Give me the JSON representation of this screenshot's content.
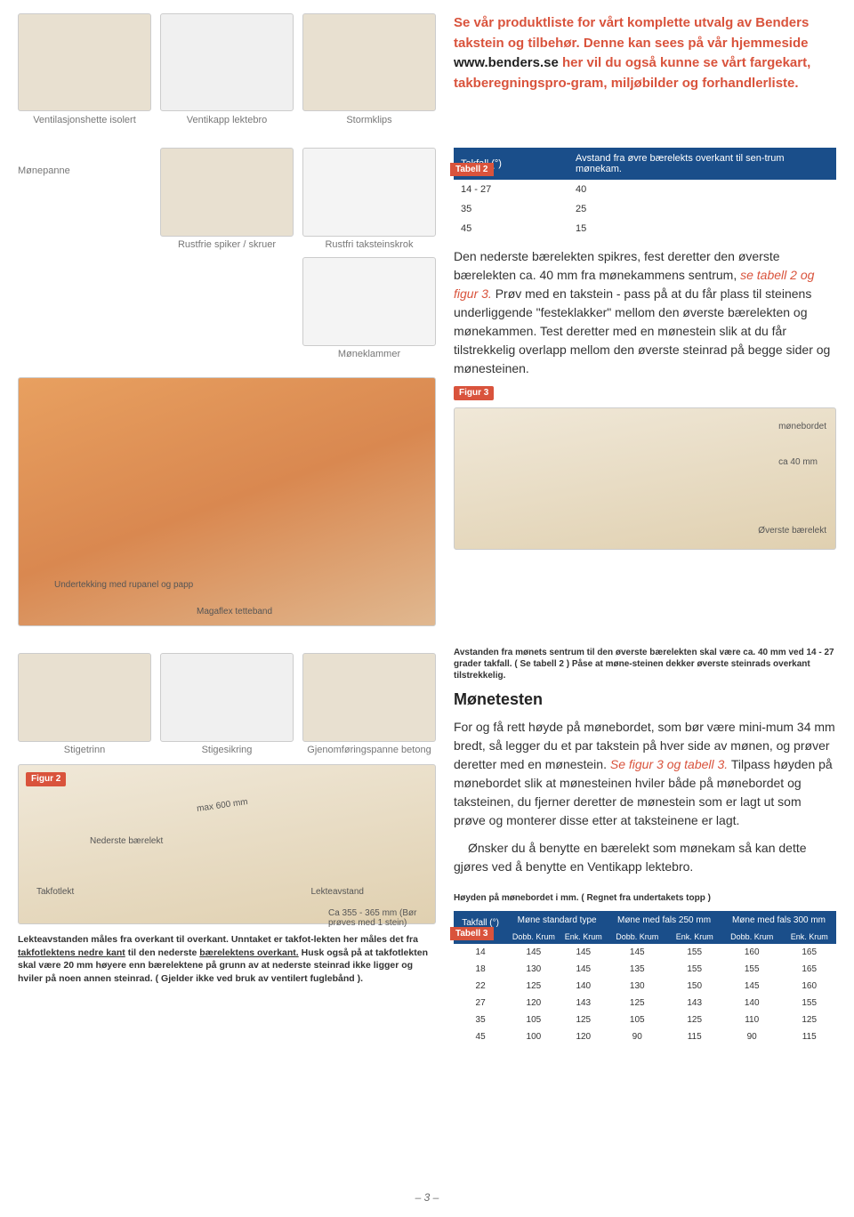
{
  "top_products": [
    {
      "label": "Ventilasjonshette isolert"
    },
    {
      "label": "Ventikapp lektebro"
    },
    {
      "label": "Stormklips"
    }
  ],
  "intro": {
    "line1_pre": "Se vår produktliste for vårt komplette utvalg av Benders takstein og tilbehør. Denne kan sees på vår hjemmeside ",
    "link": "www.benders.se",
    "line1_post": " her vil du også kunne se vårt fargekart, takberegningspro-gram, miljøbilder og forhandlerliste."
  },
  "table2": {
    "tag": "Tabell 2",
    "h1": "Takfall (°)",
    "h2": "Avstand fra øvre bærelekts overkant til sen-trum mønekam.",
    "rows": [
      {
        "a": "14 - 27",
        "b": "40"
      },
      {
        "a": "35",
        "b": "25"
      },
      {
        "a": "45",
        "b": "15"
      }
    ]
  },
  "mid_products": [
    {
      "label": "Rustfrie spiker / skruer"
    },
    {
      "label": "Rustfri taksteinskrok"
    },
    {
      "label": "Møneklammer"
    }
  ],
  "monepanne": "Mønepanne",
  "body1": {
    "text": "Den nederste bærelekten spikres, fest deretter den øverste bærelekten ca. 40 mm fra mønekammens sentrum, ",
    "em": "se tabell 2 og figur 3.",
    "text2": " Prøv med en takstein - pass på at du får plass til steinens underliggende \"festeklakker\" mellom den øverste bærelekten og mønekammen. Test deretter med en mønestein slik at du får tilstrekkelig overlapp mellom den øverste steinrad på begge sider og mønesteinen."
  },
  "fig3": {
    "tag": "Figur 3",
    "l1": "mønebordet",
    "l2": "ca 40 mm",
    "l3": "Øverste bærelekt"
  },
  "roof_labels": {
    "undertekking": "Undertekking med rupanel og papp",
    "magaflex": "Magaflex tetteband",
    "stigetrinn": "Stigetrinn",
    "stigesikring": "Stigesikring",
    "gjennomf": "Gjenomføringspanne betong"
  },
  "caption_avstand": "Avstanden fra mønets sentrum til den øverste bærelekten skal være ca. 40 mm ved 14 - 27 grader takfall. ( Se tabell 2 ) Påse at møne-steinen dekker øverste steinrads overkant tilstrekkelig.",
  "monetesten": {
    "h": "Mønetesten",
    "p1": "For og få rett høyde på mønebordet, som bør være mini-mum 34 mm bredt, så legger du et par takstein på hver side av mønen, og prøver deretter med en mønestein. ",
    "em": "Se figur 3 og tabell 3.",
    "p2": " Tilpass høyden på mønebordet slik at mønesteinen hviler både på mønebordet og taksteinen, du fjerner deretter de mønestein som er lagt ut som prøve og monterer disse etter at taksteinene er lagt.",
    "p3": "Ønsker du å benytte en bærelekt som mønekam så kan dette gjøres ved å benytte en Ventikapp lektebro."
  },
  "fig2": {
    "tag": "Figur 2",
    "max600": "max 600 mm",
    "nederste": "Nederste bærelekt",
    "takfotlekt": "Takfotlekt",
    "lekteavstand": "Lekteavstand",
    "ca355": "Ca 355 - 365 mm (Bør prøves med 1 stein)"
  },
  "lekte_note": {
    "pre": "Lekteavstanden måles fra overkant til overkant. Unntaket er takfot-lekten her måles det fra ",
    "u1": "takfotlektens nedre kant",
    "mid": " til den nederste ",
    "u2": "bærelektens overkant.",
    "post": " Husk også på at takfotlekten skal være 20 mm høyere enn bærelektene på grunn av at nederste steinrad ikke ligger og hviler på noen annen steinrad. ( Gjelder ikke ved bruk av ventilert fuglebånd )."
  },
  "table3": {
    "caption": "Høyden på mønebordet i mm. ( Regnet fra undertakets topp )",
    "tag": "Tabell 3",
    "h_takfall": "Takfall (°)",
    "h_std": "Møne standard type",
    "h_250": "Møne med fals 250 mm",
    "h_300": "Møne med fals 300 mm",
    "sub_d": "Dobb. Krum",
    "sub_e": "Enk. Krum",
    "rows": [
      {
        "t": "14",
        "a": "145",
        "b": "145",
        "c": "145",
        "d": "155",
        "e": "160",
        "f": "165"
      },
      {
        "t": "18",
        "a": "130",
        "b": "145",
        "c": "135",
        "d": "155",
        "e": "155",
        "f": "165"
      },
      {
        "t": "22",
        "a": "125",
        "b": "140",
        "c": "130",
        "d": "150",
        "e": "145",
        "f": "160"
      },
      {
        "t": "27",
        "a": "120",
        "b": "143",
        "c": "125",
        "d": "143",
        "e": "140",
        "f": "155"
      },
      {
        "t": "35",
        "a": "105",
        "b": "125",
        "c": "105",
        "d": "125",
        "e": "110",
        "f": "125"
      },
      {
        "t": "45",
        "a": "100",
        "b": "120",
        "c": "90",
        "d": "115",
        "e": "90",
        "f": "115"
      }
    ]
  },
  "page_num": "– 3 –"
}
